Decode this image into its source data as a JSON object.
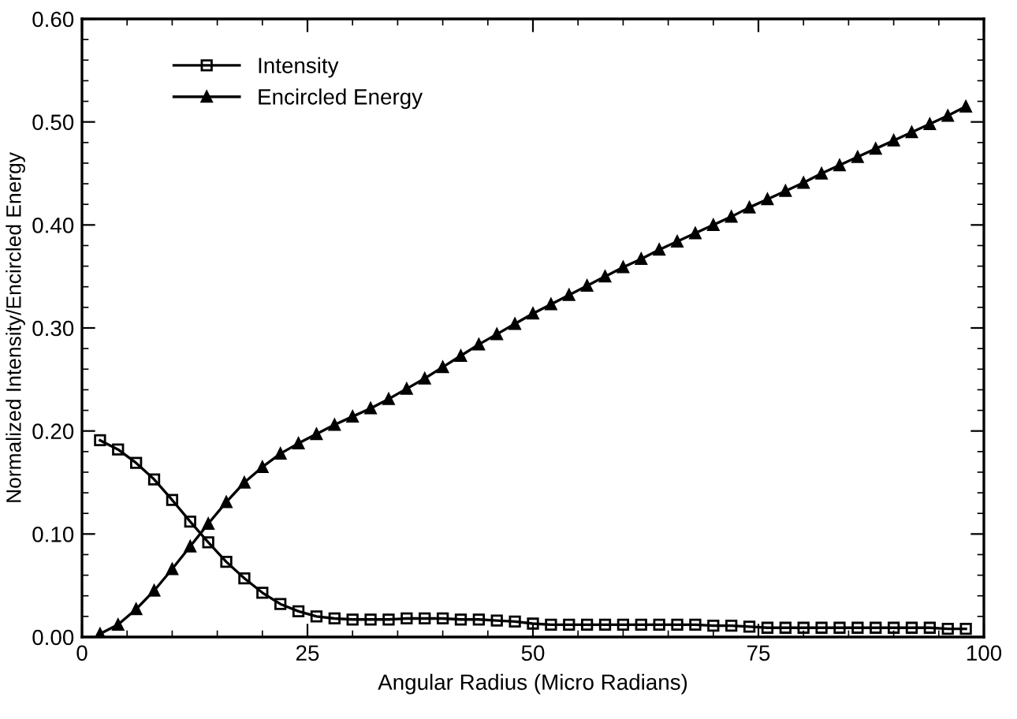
{
  "chart_data": {
    "type": "line",
    "xlabel": "Angular Radius (Micro Radians)",
    "ylabel": "Normalized Intensity/Encircled Energy",
    "x": [
      2,
      4,
      6,
      8,
      10,
      12,
      14,
      16,
      18,
      20,
      22,
      24,
      26,
      28,
      30,
      32,
      34,
      36,
      38,
      40,
      42,
      44,
      46,
      48,
      50,
      52,
      54,
      56,
      58,
      60,
      62,
      64,
      66,
      68,
      70,
      72,
      74,
      76,
      78,
      80,
      82,
      84,
      86,
      88,
      90,
      92,
      94,
      96,
      98
    ],
    "series": [
      {
        "name": "Intensity",
        "color": "#000000",
        "marker": "square",
        "values": [
          0.191,
          0.182,
          0.169,
          0.153,
          0.133,
          0.112,
          0.092,
          0.073,
          0.057,
          0.043,
          0.032,
          0.025,
          0.02,
          0.018,
          0.017,
          0.017,
          0.017,
          0.018,
          0.018,
          0.018,
          0.017,
          0.017,
          0.016,
          0.015,
          0.013,
          0.012,
          0.012,
          0.012,
          0.012,
          0.012,
          0.012,
          0.012,
          0.012,
          0.012,
          0.011,
          0.011,
          0.01,
          0.009,
          0.009,
          0.009,
          0.009,
          0.009,
          0.009,
          0.009,
          0.009,
          0.009,
          0.009,
          0.008,
          0.008
        ]
      },
      {
        "name": "Encircled Energy",
        "color": "#000000",
        "marker": "triangle",
        "values": [
          0.003,
          0.012,
          0.027,
          0.045,
          0.066,
          0.088,
          0.11,
          0.131,
          0.15,
          0.165,
          0.178,
          0.188,
          0.197,
          0.206,
          0.214,
          0.222,
          0.231,
          0.241,
          0.251,
          0.262,
          0.273,
          0.284,
          0.294,
          0.304,
          0.314,
          0.323,
          0.332,
          0.341,
          0.35,
          0.359,
          0.367,
          0.376,
          0.384,
          0.392,
          0.4,
          0.408,
          0.417,
          0.425,
          0.433,
          0.441,
          0.45,
          0.458,
          0.466,
          0.474,
          0.482,
          0.49,
          0.498,
          0.506,
          0.515
        ]
      }
    ],
    "xlim": [
      0,
      100
    ],
    "xticks": [
      0,
      25,
      50,
      75,
      100
    ],
    "ylim": [
      0,
      0.6
    ],
    "yticks": [
      {
        "value": 0,
        "label": "0.00"
      },
      {
        "value": 0.1,
        "label": "0.10"
      },
      {
        "value": 0.2,
        "label": "0.20"
      },
      {
        "value": 0.3,
        "label": "0.30"
      },
      {
        "value": 0.4,
        "label": "0.40"
      },
      {
        "value": 0.5,
        "label": "0.50"
      },
      {
        "value": 0.6,
        "label": "0.60"
      }
    ],
    "legend": "top left",
    "line_style": "solid",
    "grid": false
  }
}
